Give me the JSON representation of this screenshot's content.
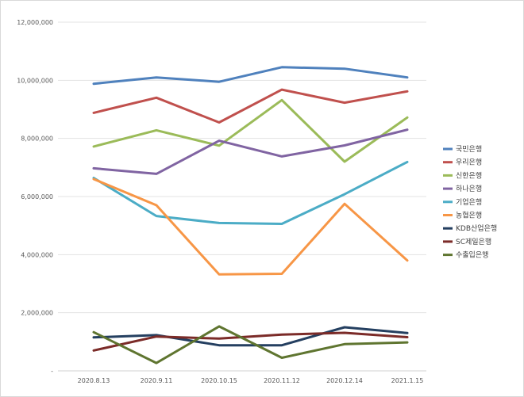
{
  "chart_data": {
    "type": "line",
    "categories": [
      "2020.8.13",
      "2020.9.11",
      "2020.10.15",
      "2020.11.12",
      "2020.12.14",
      "2021.1.15"
    ],
    "ylim": [
      0,
      12000000
    ],
    "yticks": [
      0,
      2000000,
      4000000,
      6000000,
      8000000,
      10000000,
      12000000
    ],
    "ytick_labels": [
      "-",
      "2,000,000",
      "4,000,000",
      "6,000,000",
      "8,000,000",
      "10,000,000",
      "12,000,000"
    ],
    "grid": true,
    "legend_position": "right",
    "series": [
      {
        "name": "국민은행",
        "color": "#4F81BD",
        "values": [
          9880000,
          10100000,
          9950000,
          10450000,
          10400000,
          10100000
        ]
      },
      {
        "name": "우리은행",
        "color": "#C0504D",
        "values": [
          8880000,
          9400000,
          8550000,
          9680000,
          9230000,
          9620000
        ]
      },
      {
        "name": "신한은행",
        "color": "#9BBB59",
        "values": [
          7720000,
          8280000,
          7750000,
          9320000,
          7200000,
          8720000
        ]
      },
      {
        "name": "하나은행",
        "color": "#8064A2",
        "values": [
          6970000,
          6780000,
          7920000,
          7380000,
          7760000,
          8300000
        ]
      },
      {
        "name": "기업은행",
        "color": "#4BACC6",
        "values": [
          6640000,
          5330000,
          5090000,
          5060000,
          6080000,
          7190000
        ]
      },
      {
        "name": "농협은행",
        "color": "#F79646",
        "values": [
          6600000,
          5700000,
          3320000,
          3340000,
          5750000,
          3800000
        ]
      },
      {
        "name": "KDB산업은행",
        "color": "#243F60",
        "values": [
          1150000,
          1230000,
          880000,
          880000,
          1500000,
          1300000
        ]
      },
      {
        "name": "SC제일은행",
        "color": "#7B2B28",
        "values": [
          700000,
          1180000,
          1110000,
          1250000,
          1310000,
          1160000
        ]
      },
      {
        "name": "수출입은행",
        "color": "#5F7530",
        "values": [
          1330000,
          270000,
          1530000,
          450000,
          920000,
          980000
        ]
      }
    ]
  }
}
